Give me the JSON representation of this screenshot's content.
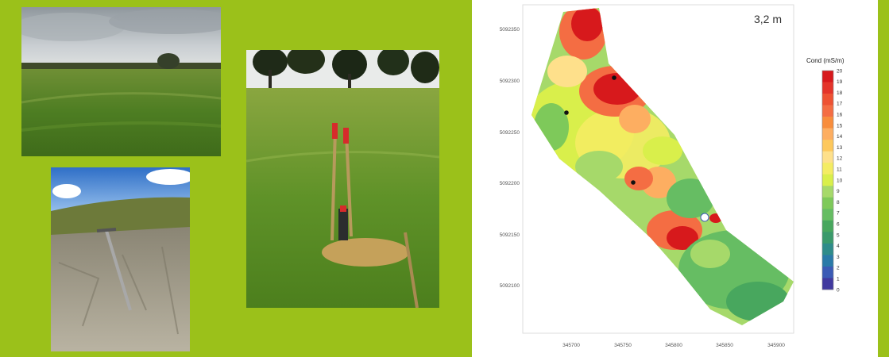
{
  "background_color": "#9bc11a",
  "photos": [
    {
      "name": "grass-field-photo"
    },
    {
      "name": "soil-profile-photo"
    },
    {
      "name": "probe-stakes-photo"
    }
  ],
  "map": {
    "depth_label": "3,2 m",
    "legend_title": "Cond (mS/m)",
    "legend_ticks": [
      "20",
      "19",
      "18",
      "17",
      "16",
      "15",
      "14",
      "13",
      "12",
      "11",
      "10",
      "9",
      "8",
      "7",
      "6",
      "5",
      "4",
      "3",
      "2",
      "1",
      "0"
    ],
    "legend_colors": [
      "#d7191c",
      "#e4342a",
      "#ee5233",
      "#f46d43",
      "#f88d3c",
      "#fdae61",
      "#fdc85c",
      "#fee08b",
      "#f4ec63",
      "#d9ef4b",
      "#a6d96a",
      "#7ec95a",
      "#66bd63",
      "#48a75e",
      "#3a9a6b",
      "#2f8c8a",
      "#2a7aa8",
      "#3b5bb5",
      "#41399f"
    ],
    "y_ticks": [
      "5092350",
      "5092300",
      "5092250",
      "5092200",
      "5092150",
      "5092100"
    ],
    "x_ticks": [
      "345700",
      "345750",
      "345800",
      "345850",
      "345900"
    ]
  }
}
